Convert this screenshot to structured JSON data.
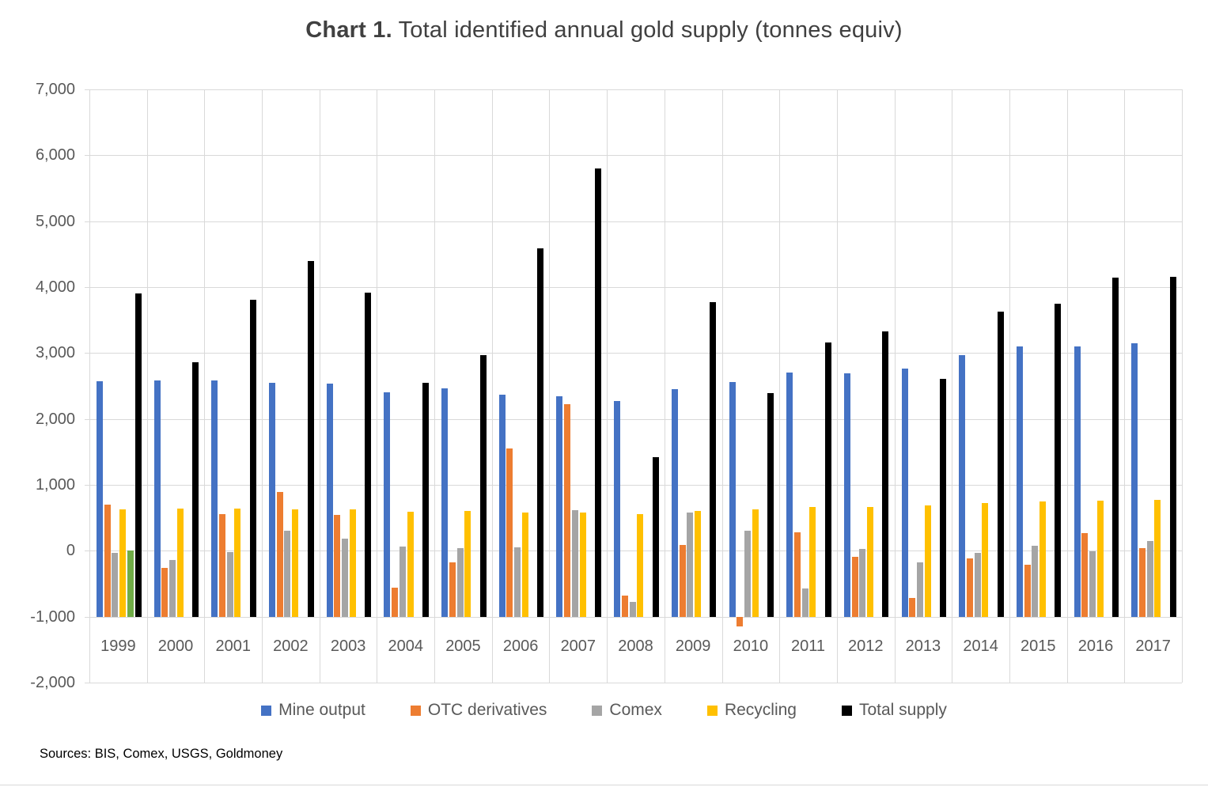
{
  "title": {
    "prefix": "Chart 1.",
    "rest": " Total identified annual gold supply (tonnes equiv)"
  },
  "source_note": "Sources: BIS, Comex, USGS, Goldmoney",
  "colors": {
    "grid": "#d9d9d9",
    "axis_text": "#595959",
    "title_text": "#404040",
    "mine_output": "#4472C4",
    "otc_derivatives": "#ED7D31",
    "comex": "#A5A5A5",
    "recycling": "#FFC000",
    "unlabeled_green": "#70AD47",
    "total_supply": "#000000"
  },
  "chart_data": {
    "type": "bar",
    "title": "Chart 1. Total identified annual gold supply (tonnes equiv)",
    "categories": [
      "1999",
      "2000",
      "2001",
      "2002",
      "2003",
      "2004",
      "2005",
      "2006",
      "2007",
      "2008",
      "2009",
      "2010",
      "2011",
      "2012",
      "2013",
      "2014",
      "2015",
      "2016",
      "2017"
    ],
    "series": [
      {
        "name": "Mine output",
        "color": "#4472C4",
        "in_legend": true,
        "values": [
          2570,
          2585,
          2590,
          2545,
          2540,
          2410,
          2465,
          2365,
          2345,
          2270,
          2450,
          2555,
          2710,
          2690,
          2765,
          2970,
          3100,
          3100,
          3150
        ]
      },
      {
        "name": "OTC derivatives",
        "color": "#ED7D31",
        "in_legend": true,
        "values": [
          700,
          -260,
          560,
          890,
          545,
          -560,
          -175,
          1555,
          2220,
          -675,
          85,
          -1150,
          275,
          -95,
          -715,
          -115,
          -210,
          265,
          45
        ]
      },
      {
        "name": "Comex",
        "color": "#A5A5A5",
        "in_legend": true,
        "values": [
          -30,
          -140,
          -20,
          300,
          185,
          65,
          35,
          50,
          615,
          -775,
          575,
          305,
          -570,
          25,
          -170,
          -35,
          80,
          -10,
          150
        ]
      },
      {
        "name": "Recycling",
        "color": "#FFC000",
        "in_legend": true,
        "values": [
          630,
          645,
          640,
          630,
          625,
          590,
          600,
          575,
          575,
          555,
          600,
          625,
          670,
          665,
          685,
          730,
          750,
          755,
          770
        ]
      },
      {
        "name": "unlabeled-green",
        "color": "#70AD47",
        "in_legend": false,
        "values": [
          0,
          null,
          null,
          null,
          null,
          null,
          null,
          null,
          null,
          null,
          null,
          null,
          null,
          null,
          null,
          null,
          null,
          null,
          null
        ]
      },
      {
        "name": "Total supply",
        "color": "#000000",
        "in_legend": true,
        "values": [
          3900,
          2855,
          3810,
          4400,
          3915,
          2550,
          2970,
          4585,
          5795,
          1425,
          3770,
          2390,
          3155,
          3325,
          2610,
          3625,
          3750,
          4150,
          4155
        ]
      }
    ],
    "ylim": [
      -2000,
      7000
    ],
    "ytick_step": 1000,
    "ytick_labels": [
      "7,000",
      "6,000",
      "5,000",
      "4,000",
      "3,000",
      "2,000",
      "1,000",
      "0",
      "-1,000",
      "-2,000"
    ],
    "bar_base_value": -1000,
    "grid": true,
    "legend_position": "bottom",
    "note": "Bars are drawn rising from the -1000 axis-crossing line; bar tops mark the series value."
  }
}
